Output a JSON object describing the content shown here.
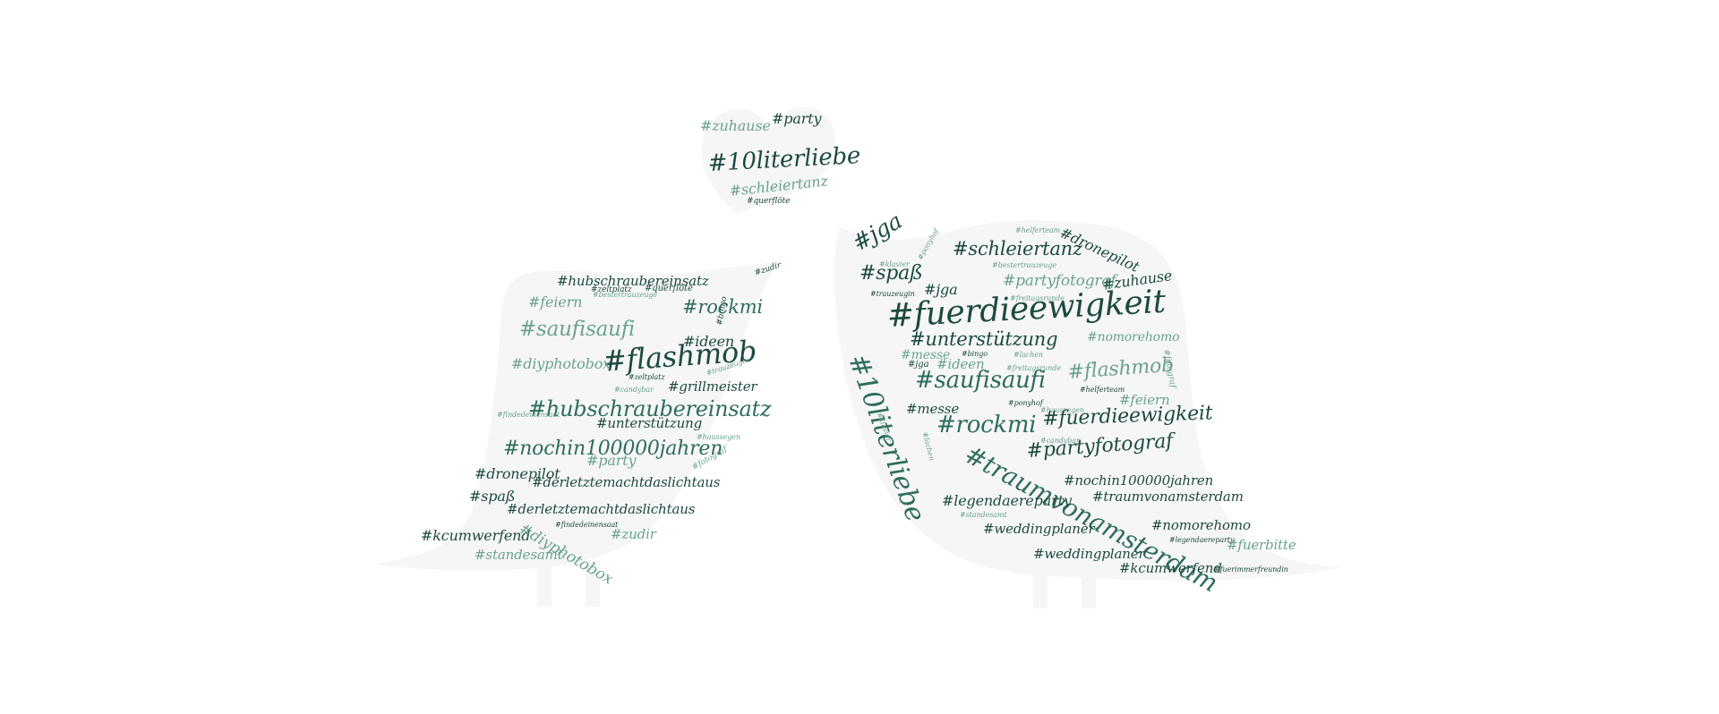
{
  "colors": {
    "background": "#ffffff",
    "silhouette": "#f6f6f6",
    "dark": "#1d4a40",
    "mid": "#2f6d5c",
    "light": "#6aa291"
  },
  "heart_words": [
    "#zuhause",
    "#party",
    "#10literliebe",
    "#schleiertanz",
    "#querflöte"
  ],
  "left_bird_words": [
    "#hubschraubereinsatz",
    "#zudir",
    "#feiern",
    "#zeltplatz",
    "#querflöte",
    "#bestertrauzeuge",
    "#rockmi",
    "#saufisaufi",
    "#bingo",
    "#ideen",
    "#flashmob",
    "#diyphotobox",
    "#zeltplatz",
    "#trauzeugin",
    "#grillmeister",
    "#candybar",
    "#hubschraubereinsatz",
    "#findedeinensaat",
    "#unterstützung",
    "#haussegen",
    "#nochin100000jahren",
    "#party",
    "#fotograf",
    "#dronepilot",
    "#derletztemachtdaslichtaus",
    "#spaß",
    "#derletztemachtdaslichtaus",
    "#findedeinensaat",
    "#kcumwerfend",
    "#diyphotobox",
    "#zudir",
    "#standesamt"
  ],
  "right_bird_words": [
    "#jga",
    "#schleiertanz",
    "#helferteam",
    "#dronepilot",
    "#klavier",
    "#ponyhof",
    "#bestertrauzeuge",
    "#spaß",
    "#partyfotograf",
    "#zuhause",
    "#jga",
    "#trauzeugin",
    "#freitagsrunde",
    "#fuerdieewigkeit",
    "#unterstützung",
    "#nomorehomo",
    "#messe",
    "#bingo",
    "#lachen",
    "#jga",
    "#ideen",
    "#freitagsrunde",
    "#flashmob",
    "#fotograf",
    "#10literliebe",
    "#saufisaufi",
    "#helferteam",
    "#feiern",
    "#messe",
    "#ponyhof",
    "#haussegen",
    "#klavier",
    "#rockmi",
    "#fuerdieewigkeit",
    "#lachen",
    "#candybar",
    "#partyfotograf",
    "#traumvonamsterdam",
    "#nochin100000jahren",
    "#legendaereparty",
    "#traumvonamsterdam",
    "#standesamt",
    "#weddingplaner",
    "#nomorehomo",
    "#legendaereparty",
    "#fuerbitte",
    "#weddingplaner",
    "#kcumwerfend",
    "#fuerimmerfreundin"
  ]
}
